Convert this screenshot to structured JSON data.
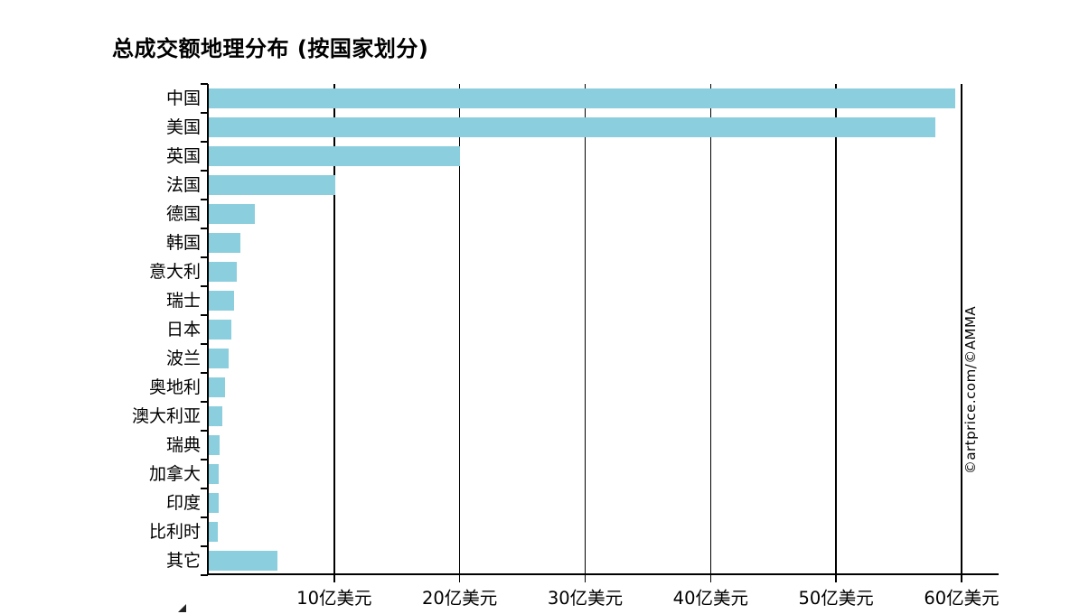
{
  "page": {
    "title": "总成交额地理分布 (按国家划分)",
    "watermark": "©artprice.com/©AMMA"
  },
  "colors": {
    "bar": "#8BCEDD",
    "axis": "#000000",
    "text": "#000000",
    "background": "#FFFFFF"
  },
  "chart_data": {
    "type": "bar",
    "orientation": "horizontal",
    "title": "总成交额地理分布 (按国家划分)",
    "unit": "亿美元",
    "categories": [
      "中国",
      "美国",
      "英国",
      "法国",
      "德国",
      "韩国",
      "意大利",
      "瑞士",
      "日本",
      "波兰",
      "奥地利",
      "澳大利亚",
      "瑞典",
      "加拿大",
      "印度",
      "比利时",
      "其它"
    ],
    "values": [
      59.5,
      57.9,
      20.0,
      10.1,
      3.7,
      2.5,
      2.2,
      2.0,
      1.8,
      1.6,
      1.3,
      1.1,
      0.9,
      0.8,
      0.8,
      0.7,
      5.5
    ],
    "xlim": [
      0,
      63
    ],
    "xticks": [
      {
        "value": 10,
        "label": "10亿美元"
      },
      {
        "value": 20,
        "label": "20亿美元"
      },
      {
        "value": 30,
        "label": "30亿美元"
      },
      {
        "value": 40,
        "label": "40亿美元"
      },
      {
        "value": 50,
        "label": "50亿美元"
      },
      {
        "value": 60,
        "label": "60亿美元"
      }
    ],
    "grid": "vertical-gridlines",
    "legend": "none",
    "watermark": "©artprice.com/©AMMA"
  }
}
